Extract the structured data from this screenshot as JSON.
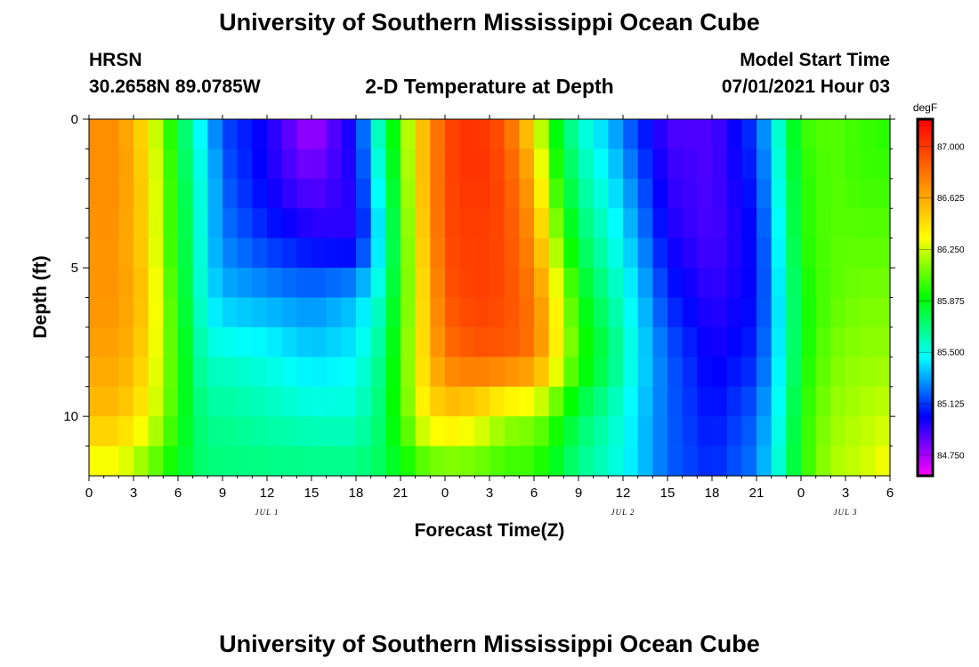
{
  "page": {
    "title_top": "University of Southern Mississippi Ocean Cube",
    "title_bottom": "University of Southern Mississippi Ocean Cube",
    "station": "HRSN",
    "coords": "30.2658N  89.0785W",
    "model_start_label": "Model Start Time",
    "model_start_value": "07/01/2021 Hour 03"
  },
  "colors": {
    "magenta": "#ff00ff",
    "blue": "#0000ff",
    "cyan": "#00ffff",
    "green": "#00ff00",
    "yellow": "#ffff00",
    "orange": "#ff8000",
    "red": "#ff0000"
  },
  "chart_data": {
    "type": "heatmap",
    "title": "2-D Temperature at Depth",
    "xlabel": "Forecast Time(Z)",
    "ylabel": "Depth (ft)",
    "units": "degF",
    "x_range_hours": [
      0,
      54
    ],
    "y_range_ft": [
      0,
      12
    ],
    "x_tick_hours": [
      0,
      3,
      6,
      9,
      12,
      15,
      18,
      21,
      24,
      27,
      30,
      33,
      36,
      39,
      42,
      45,
      48,
      51,
      54
    ],
    "x_tick_labels": [
      "0",
      "3",
      "6",
      "9",
      "12",
      "15",
      "18",
      "21",
      "0",
      "3",
      "6",
      "9",
      "12",
      "15",
      "18",
      "21",
      "0",
      "3",
      "6"
    ],
    "y_tick_values": [
      0,
      5,
      10
    ],
    "y_tick_labels": [
      "0",
      "5",
      "10"
    ],
    "day_labels": [
      {
        "text": "JUL 1",
        "hour": 12
      },
      {
        "text": "JUL 2",
        "hour": 36
      },
      {
        "text": "JUL 3",
        "hour": 51
      }
    ],
    "colorbar": {
      "min": 84.6,
      "max": 87.2,
      "ticks": [
        87.0,
        86.625,
        86.25,
        85.875,
        85.5,
        85.125,
        84.75
      ],
      "tick_labels": [
        "87.000",
        "86.625",
        "86.250",
        "85.875",
        "85.500",
        "85.125",
        "84.750"
      ]
    },
    "depth_levels_ft": [
      0,
      2,
      4,
      6,
      8,
      10,
      12
    ],
    "time_hours": [
      0,
      2,
      4,
      5,
      6,
      7,
      8,
      9,
      12,
      15,
      18,
      19.5,
      21,
      22.5,
      24,
      26,
      28,
      30,
      31,
      32,
      33,
      35,
      37,
      39,
      42,
      45,
      47,
      48,
      50,
      52,
      54
    ],
    "temperature_degF": [
      [
        86.72,
        86.72,
        86.4,
        86.05,
        85.85,
        85.55,
        85.35,
        85.15,
        85.0,
        84.72,
        85.05,
        85.6,
        86.05,
        86.55,
        86.95,
        87.05,
        86.9,
        86.4,
        85.95,
        85.75,
        85.55,
        85.35,
        85.1,
        84.9,
        84.9,
        85.15,
        85.7,
        86.0,
        86.05,
        86.0,
        85.95
      ],
      [
        86.72,
        86.72,
        86.45,
        86.1,
        85.9,
        85.6,
        85.45,
        85.2,
        85.0,
        84.85,
        85.0,
        85.5,
        86.0,
        86.55,
        86.95,
        87.05,
        86.95,
        86.6,
        86.1,
        85.85,
        85.65,
        85.45,
        85.2,
        84.95,
        84.9,
        85.1,
        85.65,
        85.95,
        86.05,
        86.0,
        86.0
      ],
      [
        86.7,
        86.7,
        86.45,
        86.1,
        85.9,
        85.65,
        85.4,
        85.25,
        85.1,
        85.0,
        84.95,
        85.4,
        85.95,
        86.5,
        86.95,
        87.0,
        86.95,
        86.7,
        86.3,
        86.0,
        85.75,
        85.55,
        85.3,
        85.0,
        84.9,
        85.05,
        85.6,
        85.95,
        86.05,
        86.05,
        86.05
      ],
      [
        86.7,
        86.7,
        86.5,
        86.15,
        85.95,
        85.65,
        85.45,
        85.35,
        85.3,
        85.25,
        85.35,
        85.55,
        85.95,
        86.45,
        86.9,
        87.0,
        86.95,
        86.8,
        86.5,
        86.2,
        85.9,
        85.65,
        85.4,
        85.1,
        84.95,
        85.05,
        85.55,
        85.9,
        86.05,
        86.1,
        86.1
      ],
      [
        86.65,
        86.65,
        86.45,
        86.15,
        86.0,
        85.7,
        85.55,
        85.55,
        85.5,
        85.4,
        85.45,
        85.65,
        86.0,
        86.45,
        86.8,
        86.9,
        86.9,
        86.8,
        86.55,
        86.25,
        86.0,
        85.75,
        85.45,
        85.2,
        85.0,
        85.1,
        85.55,
        85.9,
        86.1,
        86.15,
        86.15
      ],
      [
        86.55,
        86.55,
        86.35,
        86.15,
        85.95,
        85.75,
        85.65,
        85.65,
        85.6,
        85.55,
        85.55,
        85.7,
        86.0,
        86.35,
        86.5,
        86.4,
        86.2,
        86.15,
        86.05,
        85.9,
        85.75,
        85.6,
        85.4,
        85.2,
        85.05,
        85.2,
        85.6,
        85.95,
        86.15,
        86.2,
        86.25
      ],
      [
        86.25,
        86.25,
        86.05,
        85.95,
        85.85,
        85.75,
        85.7,
        85.7,
        85.7,
        85.7,
        85.7,
        85.75,
        85.85,
        85.95,
        86.0,
        86.0,
        85.95,
        85.95,
        85.85,
        85.75,
        85.65,
        85.55,
        85.4,
        85.2,
        85.1,
        85.25,
        85.65,
        85.95,
        86.2,
        86.25,
        86.35
      ]
    ]
  }
}
